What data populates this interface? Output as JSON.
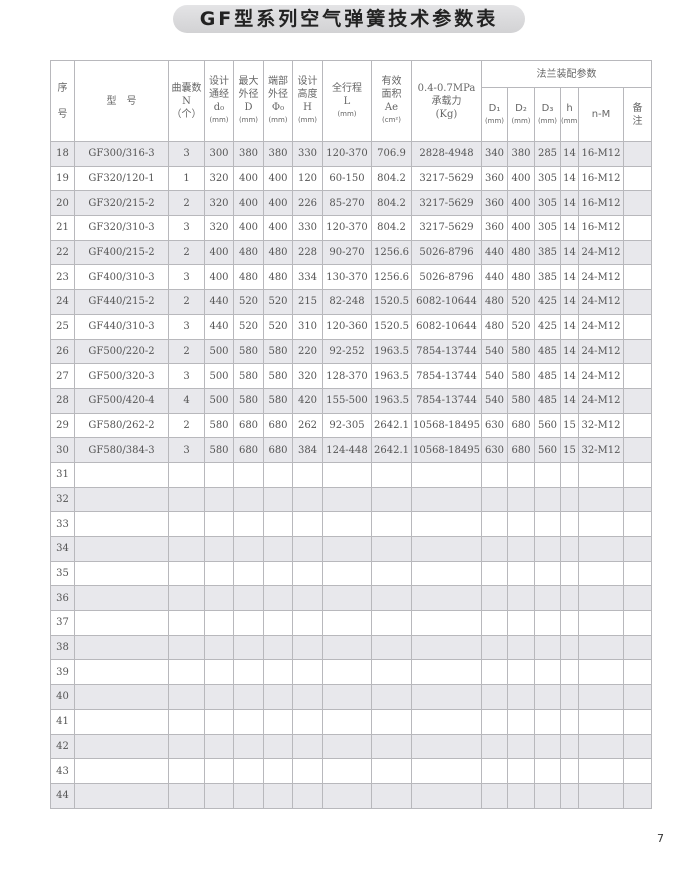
{
  "title": "GF型系列空气弹簧技术参数表",
  "header": {
    "seq": "序\n\n号",
    "model": "型　号",
    "bellows": "曲囊数",
    "bellows_sym": "N",
    "bellows_unit": "（个）",
    "d0": "设计\n通经",
    "d0_sym": "d₀",
    "D": "最大\n外径",
    "D_sym": "D",
    "phi0": "端部\n外径",
    "phi0_sym": "Φ₀",
    "H": "设计\n高度",
    "H_sym": "H",
    "L": "全行程",
    "L_sym": "L",
    "Ae": "有效\n面积",
    "Ae_sym": "Ae",
    "Ae_unit": "(cm²)",
    "load": "0.4-0.7MPa\n承载力",
    "load_unit": "(Kg)",
    "mm": "(mm)",
    "flange": "法兰装配参数",
    "D1": "D₁",
    "D2": "D₂",
    "D3": "D₃",
    "h": "h",
    "nM": "n-M",
    "remark": "备\n注"
  },
  "rows": [
    [
      "18",
      "GF300/316-3",
      "3",
      "300",
      "380",
      "380",
      "330",
      "120-370",
      "706.9",
      "2828-4948",
      "340",
      "380",
      "285",
      "14",
      "16-M12"
    ],
    [
      "19",
      "GF320/120-1",
      "1",
      "320",
      "400",
      "400",
      "120",
      "60-150",
      "804.2",
      "3217-5629",
      "360",
      "400",
      "305",
      "14",
      "16-M12"
    ],
    [
      "20",
      "GF320/215-2",
      "2",
      "320",
      "400",
      "400",
      "226",
      "85-270",
      "804.2",
      "3217-5629",
      "360",
      "400",
      "305",
      "14",
      "16-M12"
    ],
    [
      "21",
      "GF320/310-3",
      "3",
      "320",
      "400",
      "400",
      "330",
      "120-370",
      "804.2",
      "3217-5629",
      "360",
      "400",
      "305",
      "14",
      "16-M12"
    ],
    [
      "22",
      "GF400/215-2",
      "2",
      "400",
      "480",
      "480",
      "228",
      "90-270",
      "1256.6",
      "5026-8796",
      "440",
      "480",
      "385",
      "14",
      "24-M12"
    ],
    [
      "23",
      "GF400/310-3",
      "3",
      "400",
      "480",
      "480",
      "334",
      "130-370",
      "1256.6",
      "5026-8796",
      "440",
      "480",
      "385",
      "14",
      "24-M12"
    ],
    [
      "24",
      "GF440/215-2",
      "2",
      "440",
      "520",
      "520",
      "215",
      "82-248",
      "1520.5",
      "6082-10644",
      "480",
      "520",
      "425",
      "14",
      "24-M12"
    ],
    [
      "25",
      "GF440/310-3",
      "3",
      "440",
      "520",
      "520",
      "310",
      "120-360",
      "1520.5",
      "6082-10644",
      "480",
      "520",
      "425",
      "14",
      "24-M12"
    ],
    [
      "26",
      "GF500/220-2",
      "2",
      "500",
      "580",
      "580",
      "220",
      "92-252",
      "1963.5",
      "7854-13744",
      "540",
      "580",
      "485",
      "14",
      "24-M12"
    ],
    [
      "27",
      "GF500/320-3",
      "3",
      "500",
      "580",
      "580",
      "320",
      "128-370",
      "1963.5",
      "7854-13744",
      "540",
      "580",
      "485",
      "14",
      "24-M12"
    ],
    [
      "28",
      "GF500/420-4",
      "4",
      "500",
      "580",
      "580",
      "420",
      "155-500",
      "1963.5",
      "7854-13744",
      "540",
      "580",
      "485",
      "14",
      "24-M12"
    ],
    [
      "29",
      "GF580/262-2",
      "2",
      "580",
      "680",
      "680",
      "262",
      "92-305",
      "2642.1",
      "10568-18495",
      "630",
      "680",
      "560",
      "15",
      "32-M12"
    ],
    [
      "30",
      "GF580/384-3",
      "3",
      "580",
      "680",
      "680",
      "384",
      "124-448",
      "2642.1",
      "10568-18495",
      "630",
      "680",
      "560",
      "15",
      "32-M12"
    ],
    [
      "31"
    ],
    [
      "32"
    ],
    [
      "33"
    ],
    [
      "34"
    ],
    [
      "35"
    ],
    [
      "36"
    ],
    [
      "37"
    ],
    [
      "38"
    ],
    [
      "39"
    ],
    [
      "40"
    ],
    [
      "41"
    ],
    [
      "42"
    ],
    [
      "43"
    ],
    [
      "44"
    ]
  ],
  "page_number": "7"
}
